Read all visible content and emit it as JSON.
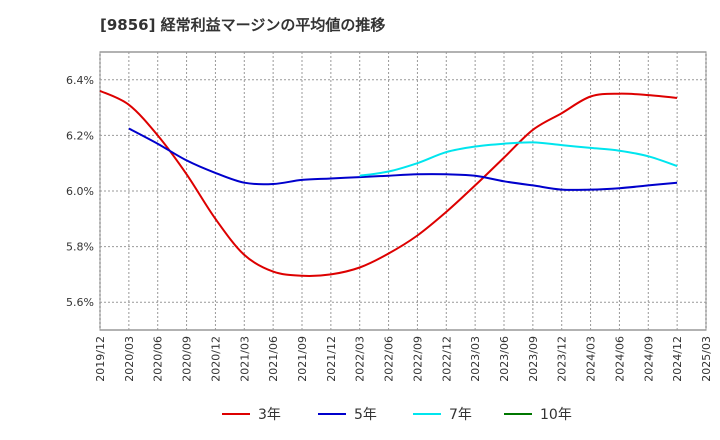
{
  "title": "[9856]  経常利益マージンの平均値の推移",
  "chart_data": {
    "type": "line",
    "title": "[9856]  経常利益マージンの平均値の推移",
    "xlabel": "",
    "ylabel": "",
    "ylim": [
      5.5,
      6.5
    ],
    "y_ticks": [
      {
        "value": 5.6,
        "label": "5.6%"
      },
      {
        "value": 5.8,
        "label": "5.8%"
      },
      {
        "value": 6.0,
        "label": "6.0%"
      },
      {
        "value": 6.2,
        "label": "6.2%"
      },
      {
        "value": 6.4,
        "label": "6.4%"
      }
    ],
    "grid": true,
    "legend_position": "bottom",
    "x": [
      "2019/12",
      "2020/03",
      "2020/06",
      "2020/09",
      "2020/12",
      "2021/03",
      "2021/06",
      "2021/09",
      "2021/12",
      "2022/03",
      "2022/06",
      "2022/09",
      "2022/12",
      "2023/03",
      "2023/06",
      "2023/09",
      "2023/12",
      "2024/03",
      "2024/06",
      "2024/09",
      "2024/12",
      "2025/03"
    ],
    "series": [
      {
        "name": "3年",
        "color": "#dd0000",
        "values": [
          6.36,
          6.31,
          6.2,
          6.06,
          5.9,
          5.77,
          5.71,
          5.695,
          5.7,
          5.725,
          5.775,
          5.84,
          5.925,
          6.02,
          6.12,
          6.22,
          6.28,
          6.34,
          6.35,
          6.345,
          6.335,
          null
        ]
      },
      {
        "name": "5年",
        "color": "#0000cc",
        "values": [
          null,
          6.225,
          6.17,
          6.11,
          6.065,
          6.03,
          6.025,
          6.04,
          6.045,
          6.05,
          6.055,
          6.06,
          6.06,
          6.055,
          6.035,
          6.02,
          6.005,
          6.005,
          6.01,
          6.02,
          6.03,
          null
        ]
      },
      {
        "name": "7年",
        "color": "#00e5ee",
        "values": [
          null,
          null,
          null,
          null,
          null,
          null,
          null,
          null,
          null,
          6.055,
          6.07,
          6.1,
          6.14,
          6.16,
          6.17,
          6.175,
          6.165,
          6.155,
          6.145,
          6.125,
          6.09,
          null
        ]
      },
      {
        "name": "10年",
        "color": "#007700",
        "values": [
          null,
          null,
          null,
          null,
          null,
          null,
          null,
          null,
          null,
          null,
          null,
          null,
          null,
          null,
          null,
          null,
          null,
          null,
          null,
          null,
          null,
          null
        ]
      }
    ]
  }
}
